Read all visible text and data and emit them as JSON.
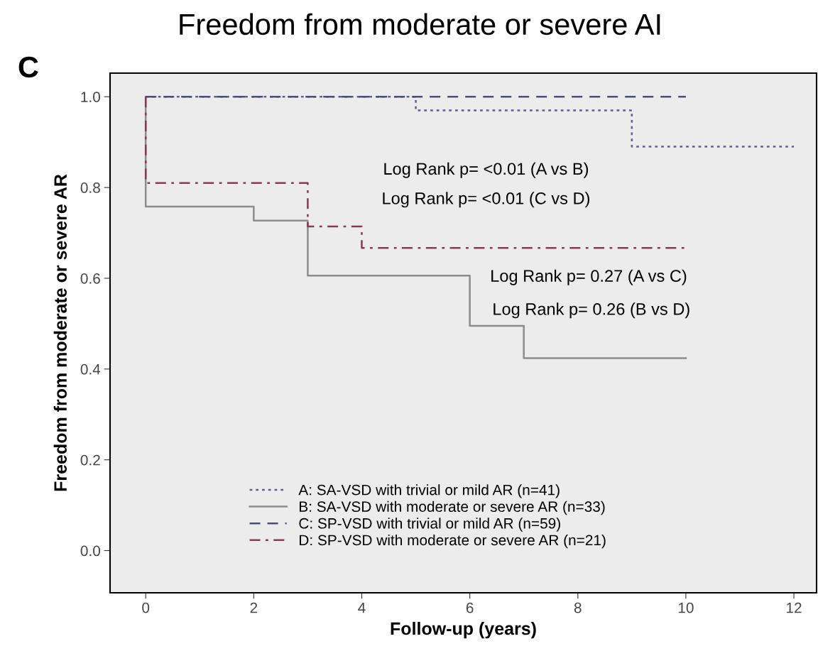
{
  "chart_data": {
    "type": "step",
    "title": "Freedom from moderate or severe AI",
    "xlabel": "Follow-up (years)",
    "ylabel": "Freedom from moderate or severe AR",
    "annotations": [
      "C",
      "Log Rank p= <0.01 (A vs B)",
      "Log Rank p= <0.01 (C vs D)",
      "Log Rank p= 0.27 (A vs C)",
      "Log Rank p= 0.26 (B vs D)"
    ],
    "series": [
      {
        "name": "A: SA-VSD with trivial or mild AR (n=41)",
        "color": "#5c5c9c",
        "line_style": "dotted",
        "x": [
          0,
          5,
          9,
          12
        ],
        "values": [
          1.0,
          0.97,
          0.89,
          0.89
        ]
      },
      {
        "name": "B: SA-VSD with moderate or severe AR (n=33)",
        "color": "#8c8c8c",
        "line_style": "solid",
        "x": [
          0,
          0,
          2,
          3,
          6,
          7,
          10
        ],
        "values": [
          1.0,
          0.758,
          0.727,
          0.606,
          0.495,
          0.424,
          0.424
        ]
      },
      {
        "name": "C: SP-VSD with trivial or mild AR (n=59)",
        "color": "#4c4c7c",
        "line_style": "dashed",
        "x": [
          0,
          10
        ],
        "values": [
          1.0,
          1.0
        ]
      },
      {
        "name": "D: SP-VSD with moderate or severe AR (n=21)",
        "color": "#8a3a50",
        "line_style": "dashdot",
        "x": [
          0,
          0,
          3,
          4,
          10
        ],
        "values": [
          1.0,
          0.81,
          0.714,
          0.667,
          0.667
        ]
      }
    ],
    "xlim": [
      -0.66,
      12.42
    ],
    "ylim": [
      -0.093,
      1.052
    ],
    "xticks": [
      0,
      2,
      4,
      6,
      8,
      10,
      12
    ],
    "yticks": [
      {
        "value": 0,
        "label": "0.0"
      },
      {
        "value": 0.2,
        "label": "0.2"
      },
      {
        "value": 0.4,
        "label": "0.4"
      },
      {
        "value": 0.6,
        "label": "0.6"
      },
      {
        "value": 0.8,
        "label": "0.8"
      },
      {
        "value": 1.0,
        "label": "1.0"
      }
    ],
    "grid": false,
    "legend": "bottom"
  }
}
